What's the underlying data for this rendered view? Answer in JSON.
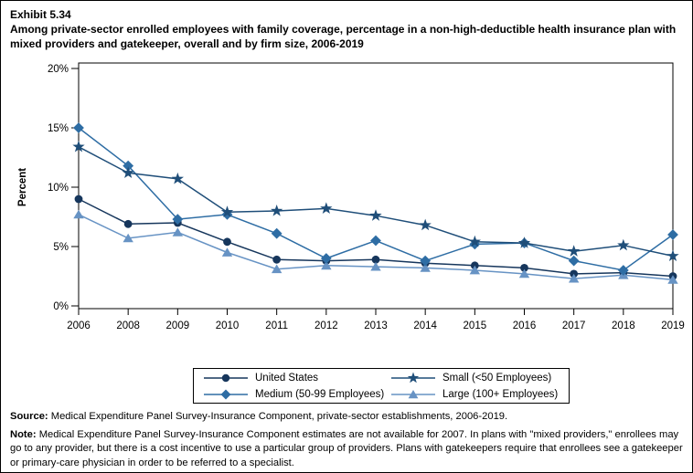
{
  "exhibit": {
    "number": "Exhibit 5.34",
    "title": "Among private-sector enrolled employees with family coverage, percentage in a non-high-deductible health insurance plan with mixed providers and gatekeeper, overall and by firm size, 2006-2019"
  },
  "chart_data": {
    "type": "line",
    "title": "",
    "xlabel": "",
    "ylabel": "Percent",
    "ylim": [
      0,
      20
    ],
    "grid": false,
    "legend_position": "bottom",
    "yticks": [
      0,
      5,
      10,
      15,
      20
    ],
    "ytick_labels": [
      "0%",
      "5%",
      "10%",
      "15%",
      "20%"
    ],
    "categories": [
      "2006",
      "2008",
      "2009",
      "2010",
      "2011",
      "2012",
      "2013",
      "2014",
      "2015",
      "2016",
      "2017",
      "2018",
      "2019"
    ],
    "series": [
      {
        "name": "United States",
        "marker": "circle",
        "color": "#16365C",
        "values": [
          9.0,
          6.9,
          7.0,
          5.4,
          3.9,
          3.8,
          3.9,
          3.6,
          3.4,
          3.2,
          2.7,
          2.8,
          2.5
        ]
      },
      {
        "name": "Medium (50-99 Employees)",
        "marker": "diamond",
        "color": "#2E6DA4",
        "values": [
          15.0,
          11.8,
          7.3,
          7.7,
          6.1,
          4.0,
          5.5,
          3.8,
          5.2,
          5.3,
          3.8,
          3.0,
          6.0
        ]
      },
      {
        "name": "Small (<50 Employees)",
        "marker": "star",
        "color": "#1F4E79",
        "values": [
          13.4,
          11.2,
          10.7,
          7.9,
          8.0,
          8.2,
          7.6,
          6.8,
          5.4,
          5.3,
          4.6,
          5.1,
          4.2
        ]
      },
      {
        "name": "Large (100+ Employees)",
        "marker": "triangle",
        "color": "#6793C4",
        "values": [
          7.7,
          5.7,
          6.2,
          4.5,
          3.1,
          3.4,
          3.3,
          3.2,
          3.0,
          2.7,
          2.3,
          2.6,
          2.2
        ]
      }
    ]
  },
  "legend": {
    "order": [
      "United States",
      "Small (<50 Employees)",
      "Medium (50-99 Employees)",
      "Large (100+ Employees)"
    ]
  },
  "footnotes": {
    "source_label": "Source:",
    "source_text": "Medical Expenditure Panel Survey-Insurance Component, private-sector establishments, 2006-2019.",
    "note_label": "Note:",
    "note_text": "Medical Expenditure Panel Survey-Insurance Component estimates are not available for 2007. In plans with \"mixed providers,\" enrollees may go to any provider, but there is a cost incentive to use a particular group of providers. Plans with gatekeepers require that enrollees see a gatekeeper or primary-care physician in order to be referred to a specialist."
  }
}
